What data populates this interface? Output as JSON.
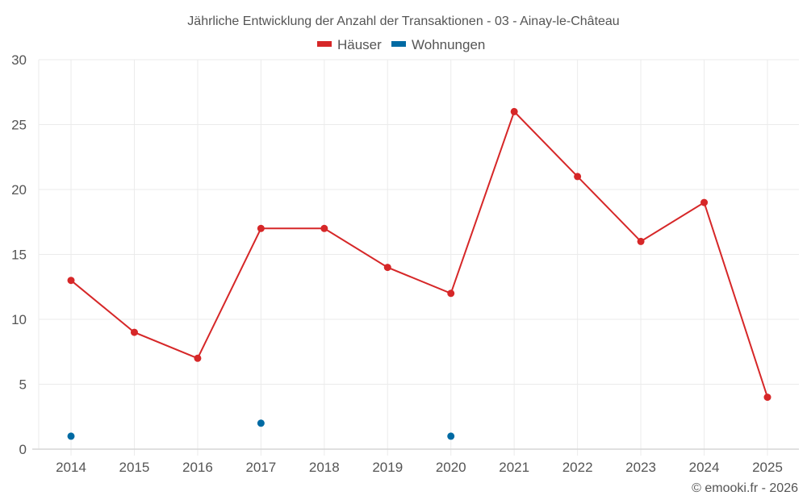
{
  "chart_data": {
    "type": "line",
    "title": "Jährliche Entwicklung der Anzahl der Transaktionen - 03 - Ainay-le-Château",
    "xlabel": "",
    "ylabel": "",
    "categories": [
      "2014",
      "2015",
      "2016",
      "2017",
      "2018",
      "2019",
      "2020",
      "2021",
      "2022",
      "2023",
      "2024",
      "2025"
    ],
    "series": [
      {
        "name": "Häuser",
        "color": "#d62728",
        "values": [
          13,
          9,
          7,
          17,
          17,
          14,
          12,
          26,
          21,
          16,
          19,
          4
        ],
        "style": "line+markers"
      },
      {
        "name": "Wohnungen",
        "color": "#006aa3",
        "values": [
          1,
          null,
          null,
          2,
          null,
          null,
          1,
          null,
          null,
          null,
          null,
          null
        ],
        "style": "markers"
      }
    ],
    "ylim": [
      0,
      30
    ],
    "yticks": [
      0,
      5,
      10,
      15,
      20,
      25,
      30
    ],
    "grid": true,
    "legend_position": "top-center"
  },
  "legend": {
    "items": [
      {
        "label": "Häuser",
        "color": "#d62728"
      },
      {
        "label": "Wohnungen",
        "color": "#006aa3"
      }
    ]
  },
  "credit": "© emooki.fr - 2026"
}
